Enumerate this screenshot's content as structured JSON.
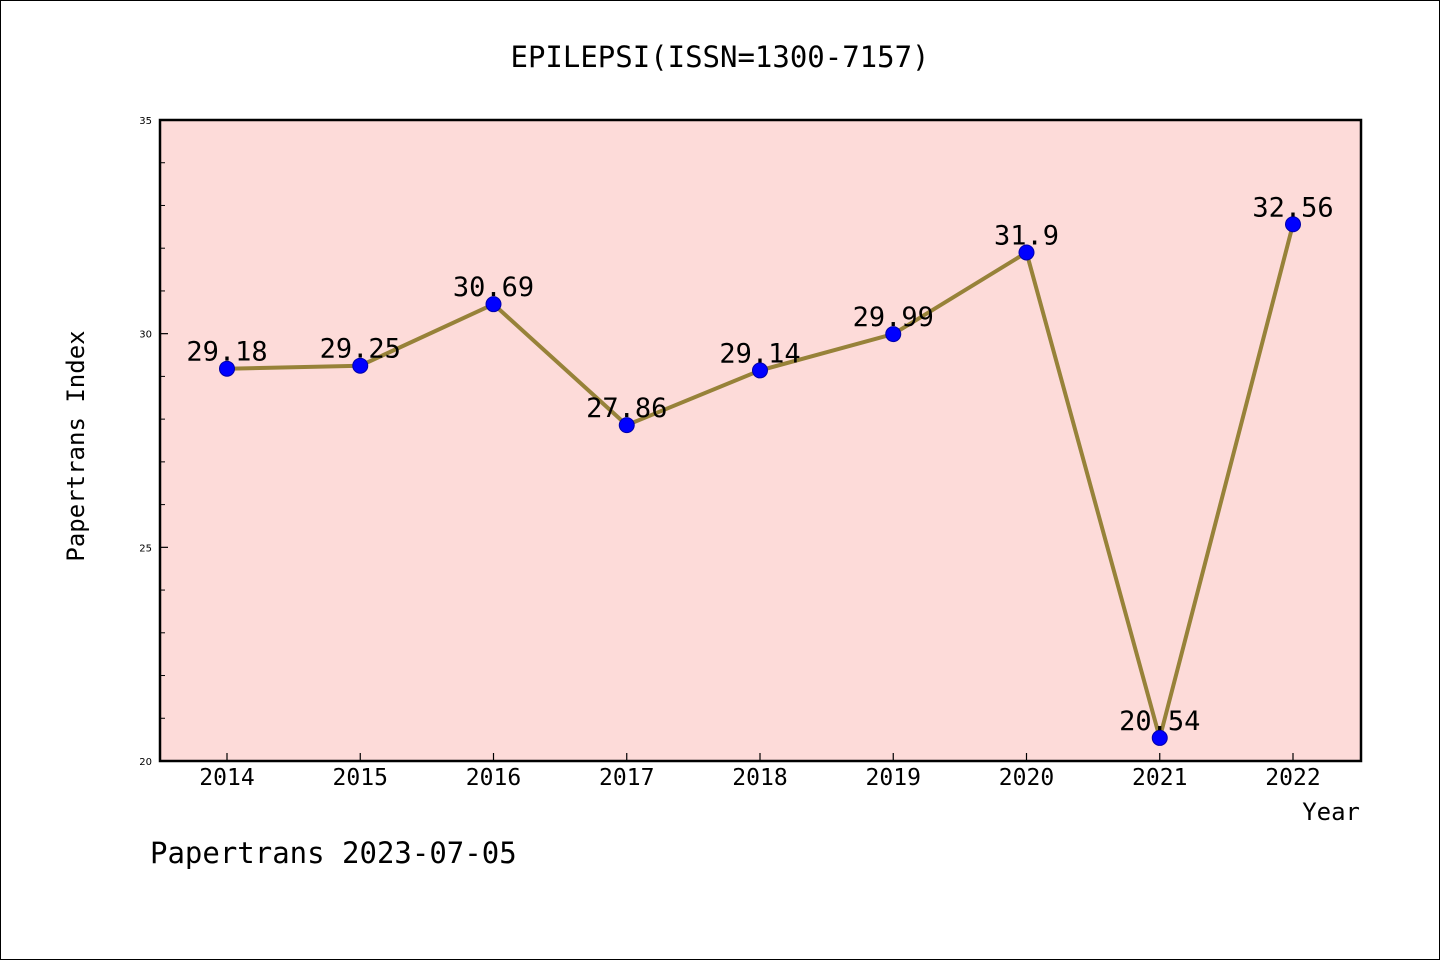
{
  "chart_data": {
    "type": "line",
    "title": "EPILEPSI(ISSN=1300-7157)",
    "xlabel": "Year",
    "ylabel": "Papertrans Index",
    "categories": [
      "2014",
      "2015",
      "2016",
      "2017",
      "2018",
      "2019",
      "2020",
      "2021",
      "2022"
    ],
    "series": [
      {
        "values": [
          29.18,
          29.25,
          30.69,
          27.86,
          29.14,
          29.99,
          31.9,
          20.54,
          32.56
        ],
        "data_labels": [
          "29.18",
          "29.25",
          "30.69",
          "27.86",
          "29.14",
          "29.99",
          "31.9",
          "20.54",
          "32.56"
        ]
      }
    ],
    "ylim": [
      20,
      35
    ],
    "y_ticks": [
      20,
      25,
      30,
      35
    ],
    "y_tick_labels": [
      "20",
      "25",
      "30",
      "35"
    ],
    "grid": false,
    "legend": "none",
    "colors": {
      "plot_background": "#fddbd9",
      "line": "#978239",
      "marker": "#0000ff"
    }
  },
  "footer": {
    "caption": "Papertrans 2023-07-05"
  }
}
